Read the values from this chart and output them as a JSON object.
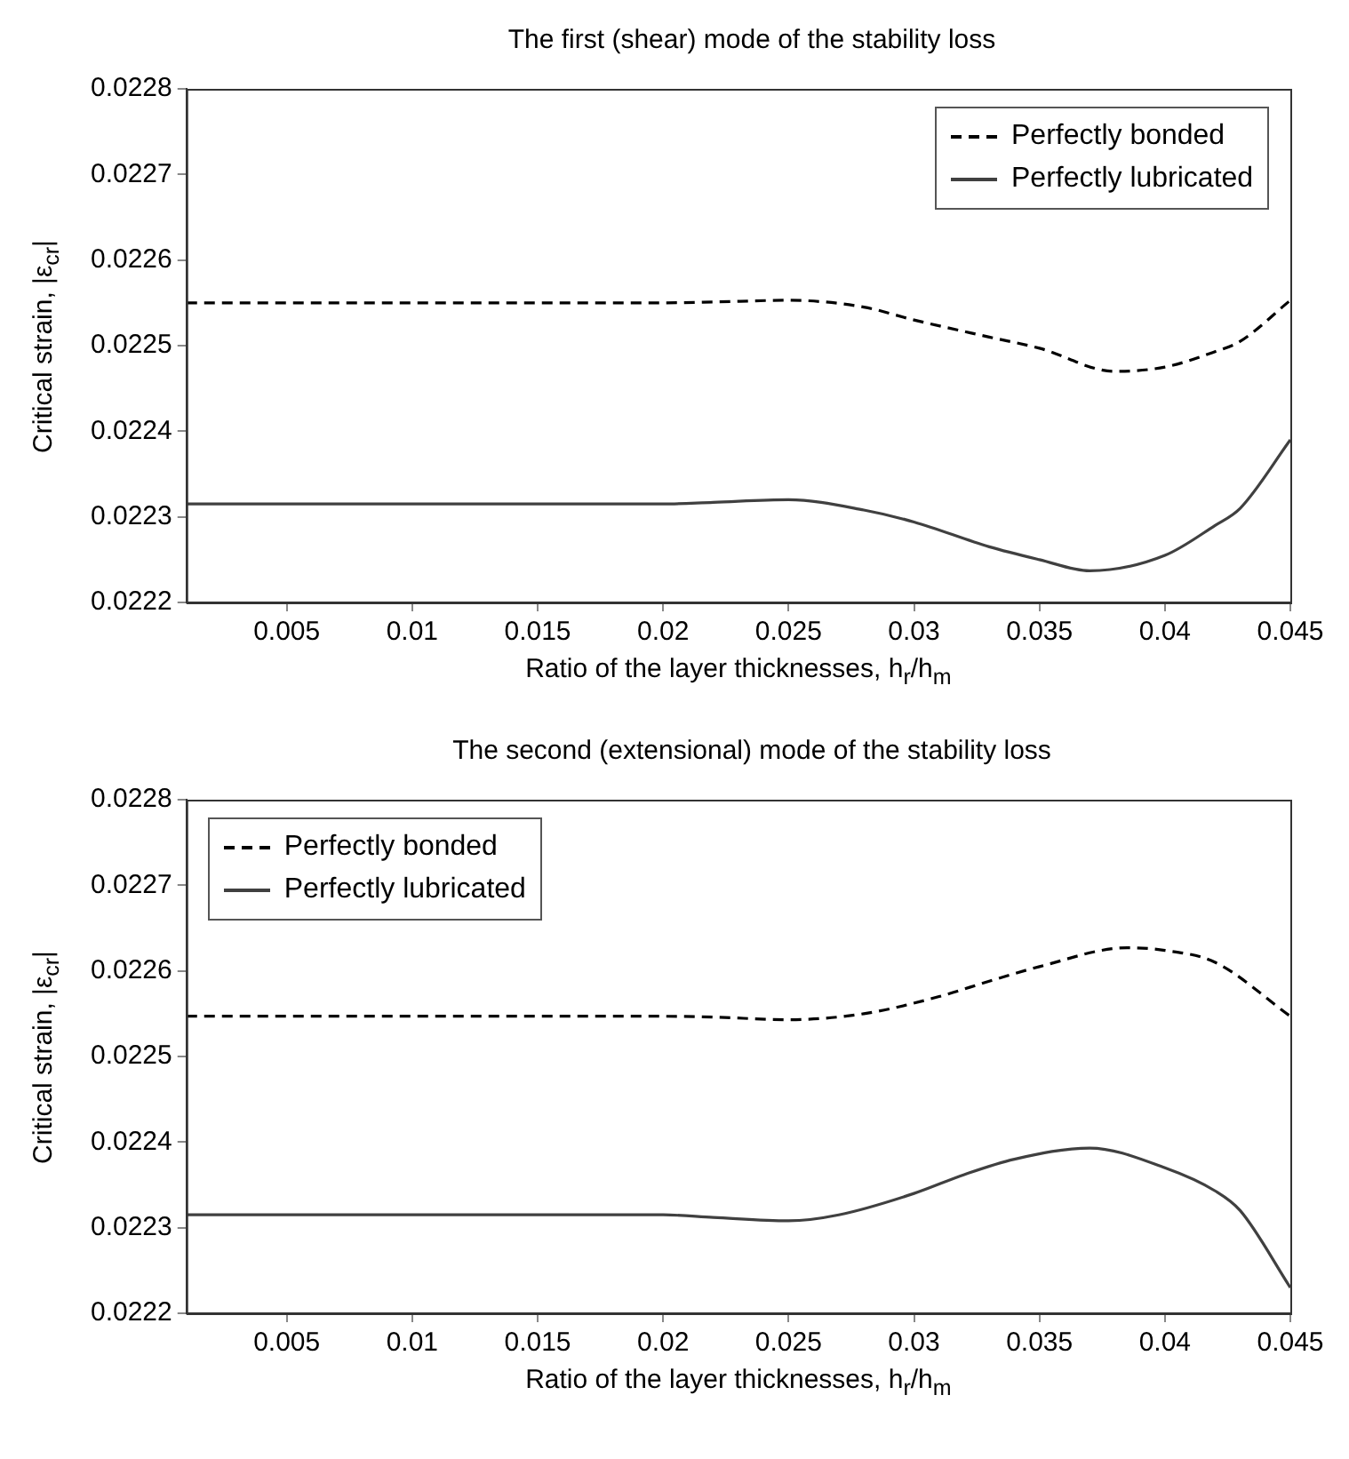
{
  "chart_data": [
    {
      "type": "line",
      "title": "The first (shear) mode of the stability loss",
      "xlabel": "Ratio of the layer thicknesses, h$_{r}$/h$_{m}$",
      "ylabel": "Critical strain, |ε$_{cr}$|",
      "xlim": [
        0.001,
        0.045
      ],
      "xticks": [
        0.005,
        0.01,
        0.015,
        0.02,
        0.025,
        0.03,
        0.035,
        0.04,
        0.045
      ],
      "ylim": [
        0.0222,
        0.0228
      ],
      "yticks": [
        0.0222,
        0.0223,
        0.0224,
        0.0225,
        0.0226,
        0.0227,
        0.0228
      ],
      "grid": false,
      "legend": "top right",
      "marker": "none",
      "series": [
        {
          "name": "Perfectly bonded",
          "color": "#000000",
          "line_style": "dashed",
          "x": [
            0.001,
            0.005,
            0.01,
            0.015,
            0.02,
            0.022,
            0.025,
            0.028,
            0.03,
            0.033,
            0.035,
            0.038,
            0.04,
            0.042,
            0.043,
            0.045
          ],
          "values": [
            0.02255,
            0.02255,
            0.02255,
            0.02255,
            0.02255,
            0.022551,
            0.022553,
            0.022545,
            0.02253,
            0.02251,
            0.022497,
            0.02247,
            0.022475,
            0.022493,
            0.022505,
            0.022553
          ]
        },
        {
          "name": "Perfectly lubricated",
          "color": "#404040",
          "line_style": "solid",
          "x": [
            0.001,
            0.005,
            0.01,
            0.015,
            0.02,
            0.022,
            0.025,
            0.028,
            0.03,
            0.033,
            0.035,
            0.037,
            0.04,
            0.042,
            0.043,
            0.045
          ],
          "values": [
            0.022315,
            0.022315,
            0.022315,
            0.022315,
            0.022315,
            0.022317,
            0.02232,
            0.022308,
            0.022294,
            0.022265,
            0.02225,
            0.022237,
            0.022255,
            0.02229,
            0.02231,
            0.02239
          ]
        }
      ]
    },
    {
      "type": "line",
      "title": "The second (extensional) mode of the stability loss",
      "xlabel": "Ratio of the layer thicknesses, h$_{r}$/h$_{m}$",
      "ylabel": "Critical strain, |ε$_{cr}$|",
      "xlim": [
        0.001,
        0.045
      ],
      "xticks": [
        0.005,
        0.01,
        0.015,
        0.02,
        0.025,
        0.03,
        0.035,
        0.04,
        0.045
      ],
      "ylim": [
        0.0222,
        0.0228
      ],
      "yticks": [
        0.0222,
        0.0223,
        0.0224,
        0.0225,
        0.0226,
        0.0227,
        0.0228
      ],
      "grid": false,
      "legend": "top left",
      "marker": "none",
      "series": [
        {
          "name": "Perfectly bonded",
          "color": "#000000",
          "line_style": "dashed",
          "x": [
            0.001,
            0.005,
            0.01,
            0.015,
            0.02,
            0.022,
            0.025,
            0.028,
            0.031,
            0.033,
            0.035,
            0.0385,
            0.04,
            0.042,
            0.045
          ],
          "values": [
            0.022547,
            0.022547,
            0.022547,
            0.022547,
            0.022547,
            0.022546,
            0.022543,
            0.02255,
            0.02257,
            0.022588,
            0.022605,
            0.022627,
            0.022624,
            0.02261,
            0.022547
          ]
        },
        {
          "name": "Perfectly lubricated",
          "color": "#404040",
          "line_style": "solid",
          "x": [
            0.001,
            0.005,
            0.01,
            0.015,
            0.02,
            0.022,
            0.025,
            0.027,
            0.03,
            0.032,
            0.034,
            0.037,
            0.04,
            0.042,
            0.043,
            0.045
          ],
          "values": [
            0.022315,
            0.022315,
            0.022315,
            0.022315,
            0.022315,
            0.022312,
            0.022308,
            0.022315,
            0.02234,
            0.022362,
            0.02238,
            0.022393,
            0.02237,
            0.022343,
            0.02232,
            0.02223
          ]
        }
      ]
    }
  ]
}
